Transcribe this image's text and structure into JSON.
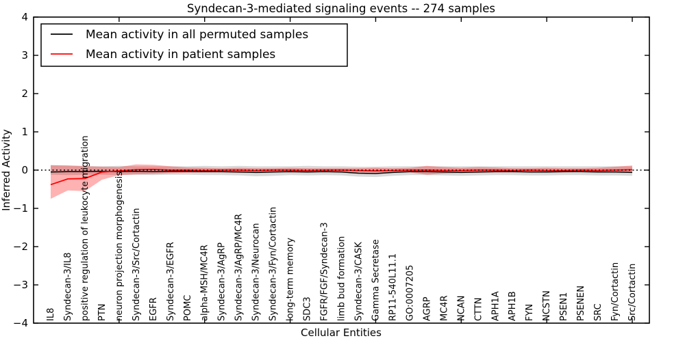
{
  "title": "Syndecan-3-mediated signaling events -- 274 samples",
  "axes": {
    "ylabel": "Inferred Activity",
    "xlabel": "Cellular Entities"
  },
  "legend": {
    "position": "upper left",
    "items": [
      {
        "label": "Mean activity in all permuted samples",
        "color": "#000000"
      },
      {
        "label": "Mean activity in patient samples",
        "color": "#ff0000"
      }
    ]
  },
  "chart_data": {
    "type": "line",
    "title": "Syndecan-3-mediated signaling events -- 274 samples",
    "xlabel": "Cellular Entities",
    "ylabel": "Inferred Activity",
    "grid": false,
    "legend_position": "upper left",
    "xlim": [
      0,
      36
    ],
    "ylim": [
      -4,
      4
    ],
    "yticks": [
      -4,
      -3,
      -2,
      -1,
      0,
      1,
      2,
      3,
      4
    ],
    "xtick_positions": [
      5,
      10,
      15,
      20,
      25,
      30,
      35
    ],
    "x": [
      1,
      2,
      3,
      4,
      5,
      6,
      7,
      8,
      9,
      10,
      11,
      12,
      13,
      14,
      15,
      16,
      17,
      18,
      19,
      20,
      21,
      22,
      23,
      24,
      25,
      26,
      27,
      28,
      29,
      30,
      31,
      32,
      33,
      34,
      35
    ],
    "categories": [
      "IL8",
      "Syndecan-3/IL8",
      "positive regulation of leukocyte migration",
      "PTN",
      "neuron projection morphogenesis",
      "Syndecan-3/Src/Cortactin",
      "EGFR",
      "Syndecan-3/EGFR",
      "POMC",
      "alpha-MSH/MC4R",
      "Syndecan-3/AgRP",
      "Syndecan-3/AgRP/MC4R",
      "Syndecan-3/Neurocan",
      "Syndecan-3/Fyn/Cortactin",
      "long-term memory",
      "SDC3",
      "FGFR/FGF/Syndecan-3",
      "limb bud formation",
      "Syndecan-3/CASK",
      "Gamma Secretase",
      "RP11-540L11.1",
      "GO:0007205",
      "AGRP",
      "MC4R",
      "NCAN",
      "CTTN",
      "APH1A",
      "APH1B",
      "FYN",
      "NCSTN",
      "PSEN1",
      "PSENEN",
      "SRC",
      "Fyn/Cortactin",
      "Src/Cortactin"
    ],
    "zero_line": {
      "value": 0,
      "style": "dotted",
      "color": "#000000"
    },
    "series": [
      {
        "name": "Mean activity in all permuted samples",
        "color": "#000000",
        "band_color": "rgba(0,0,0,0.15)",
        "values": [
          -0.05,
          -0.04,
          -0.04,
          -0.03,
          -0.04,
          -0.03,
          -0.04,
          -0.03,
          -0.03,
          -0.04,
          -0.04,
          -0.05,
          -0.06,
          -0.05,
          -0.04,
          -0.05,
          -0.04,
          -0.05,
          -0.08,
          -0.09,
          -0.06,
          -0.04,
          -0.04,
          -0.05,
          -0.06,
          -0.05,
          -0.04,
          -0.04,
          -0.05,
          -0.05,
          -0.04,
          -0.04,
          -0.05,
          -0.05,
          -0.06
        ],
        "band_upper": [
          0.13,
          0.12,
          0.11,
          0.1,
          0.11,
          0.1,
          0.1,
          0.1,
          0.1,
          0.11,
          0.1,
          0.11,
          0.1,
          0.1,
          0.1,
          0.11,
          0.1,
          0.1,
          0.09,
          0.09,
          0.1,
          0.1,
          0.1,
          0.1,
          0.1,
          0.1,
          0.1,
          0.1,
          0.1,
          0.1,
          0.1,
          0.1,
          0.1,
          0.1,
          0.1
        ],
        "band_lower": [
          -0.12,
          -0.13,
          -0.12,
          -0.12,
          -0.13,
          -0.12,
          -0.13,
          -0.12,
          -0.12,
          -0.13,
          -0.13,
          -0.14,
          -0.16,
          -0.15,
          -0.13,
          -0.14,
          -0.13,
          -0.14,
          -0.17,
          -0.18,
          -0.15,
          -0.13,
          -0.13,
          -0.14,
          -0.15,
          -0.14,
          -0.13,
          -0.13,
          -0.14,
          -0.14,
          -0.13,
          -0.13,
          -0.14,
          -0.14,
          -0.15
        ]
      },
      {
        "name": "Mean activity in patient samples",
        "color": "#ff0000",
        "band_color": "rgba(255,0,0,0.30)",
        "values": [
          -0.38,
          -0.23,
          -0.22,
          -0.05,
          -0.02,
          0.01,
          0.02,
          0.0,
          0.0,
          -0.01,
          0.0,
          0.0,
          -0.01,
          0.0,
          0.0,
          -0.01,
          0.0,
          0.0,
          -0.01,
          -0.02,
          -0.01,
          0.0,
          0.0,
          -0.01,
          -0.01,
          0.0,
          0.0,
          -0.01,
          0.0,
          -0.01,
          -0.01,
          0.0,
          -0.01,
          0.0,
          0.01
        ],
        "band_upper": [
          0.13,
          0.12,
          0.1,
          0.09,
          0.08,
          0.15,
          0.14,
          0.1,
          0.07,
          0.06,
          0.05,
          0.06,
          0.05,
          0.05,
          0.06,
          0.05,
          0.05,
          0.05,
          0.05,
          0.06,
          0.05,
          0.06,
          0.11,
          0.08,
          0.06,
          0.08,
          0.07,
          0.05,
          0.05,
          0.06,
          0.05,
          0.05,
          0.06,
          0.09,
          0.12
        ],
        "band_lower": [
          -0.75,
          -0.53,
          -0.55,
          -0.25,
          -0.13,
          -0.11,
          -0.1,
          -0.08,
          -0.07,
          -0.06,
          -0.06,
          -0.07,
          -0.06,
          -0.05,
          -0.06,
          -0.06,
          -0.05,
          -0.06,
          -0.06,
          -0.07,
          -0.06,
          -0.06,
          -0.12,
          -0.09,
          -0.07,
          -0.07,
          -0.06,
          -0.06,
          -0.05,
          -0.06,
          -0.06,
          -0.05,
          -0.06,
          -0.05,
          -0.04
        ]
      }
    ]
  }
}
